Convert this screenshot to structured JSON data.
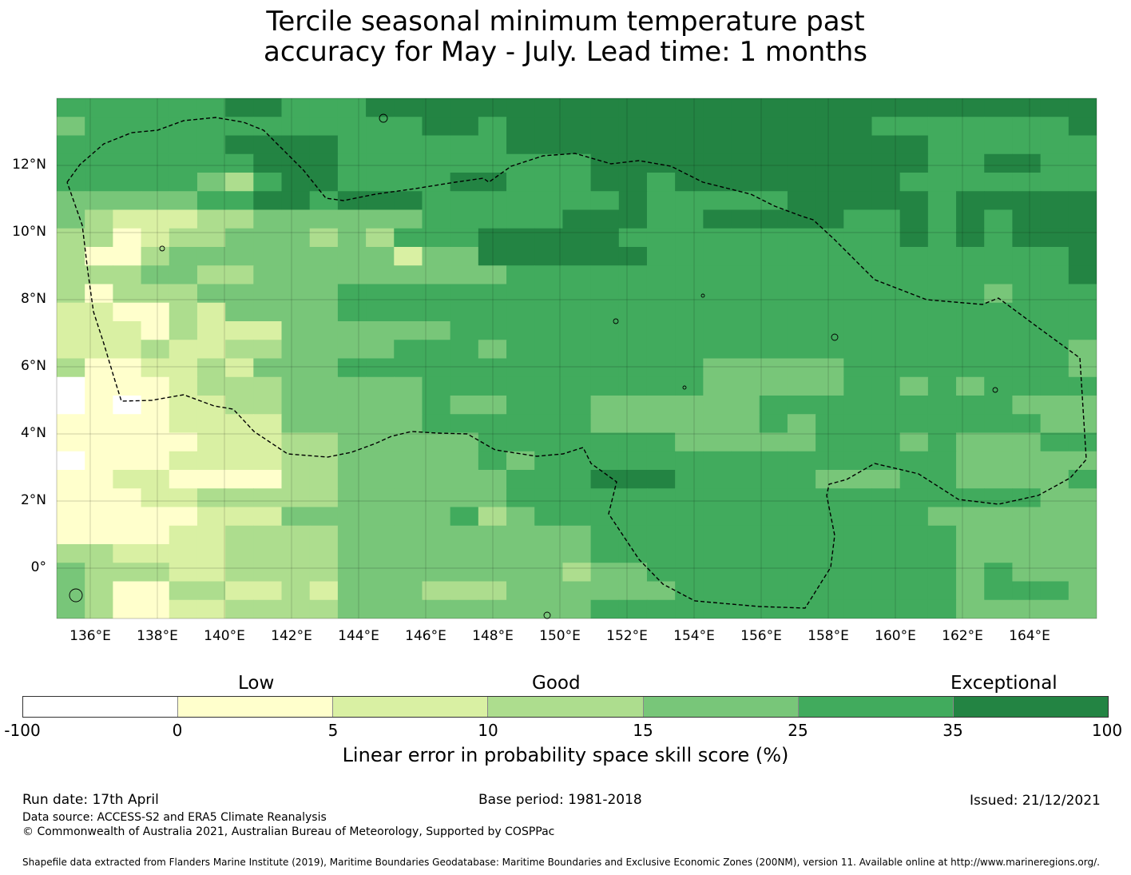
{
  "title": {
    "line1": "Tercile seasonal minimum temperature past",
    "line2": "accuracy for May - July. Lead time: 1 months"
  },
  "map": {
    "lat_labels": [
      "12°N",
      "10°N",
      "8°N",
      "6°N",
      "4°N",
      "2°N",
      "0°"
    ],
    "lon_labels": [
      "136°E",
      "138°E",
      "140°E",
      "142°E",
      "144°E",
      "146°E",
      "148°E",
      "150°E",
      "152°E",
      "154°E",
      "156°E",
      "158°E",
      "160°E",
      "162°E",
      "164°E"
    ],
    "grid_cols": 37,
    "grid_rows": 28,
    "grid_lat_top": 14.0,
    "grid_lon_left": 135.0,
    "cell_deg": 0.5556,
    "rows": [
      "5555556655566666666666666666666666666",
      "4555555555555665666666666666655555556",
      "5555556666555555666666666666666555555",
      "5555555666555555555666666666666556655",
      "5555543566555566555665666666665555555",
      "4444455665666555555565555566666566666",
      "4322233444444555556665566666556565666",
      "3312334443435556666655555555556565666",
      "3113444444442446666665555555555555556",
      "3334433444444444555555555555555555556",
      "3133344444555555555555555555555554555",
      "2211324444555555555555555555555555555",
      "2221322244444455555555555555555555555",
      "2223223344445554555555555555555555554",
      "3112232444555555555555544444555555554",
      "0111233344444555555555544444554545555",
      "0101223344444544555444444555555555444",
      "1111222244444555555444444545555555544",
      "1111122233444445555555444445554544455",
      "0111222233444445455555555555555544444",
      "1122111133444444555666555554445544445",
      "1112233333444444555555555555555555544",
      "1111122244444453455555555555555444444",
      "1111223333444444444555555555555544444",
      "3322223333444444444555555555555544444",
      "4333223333444444443445555555555545444",
      "4311332232444333444444555555555545554",
      "4311223333444444444555555555555544444"
    ],
    "coast_segments": []
  },
  "colorbar": {
    "categories": [
      "Low",
      "Good",
      "Exceptional"
    ],
    "ticks": [
      "-100",
      "0",
      "5",
      "10",
      "15",
      "25",
      "35",
      "100"
    ],
    "colors": [
      "#ffffff",
      "#ffffcc",
      "#d9f0a3",
      "#addd8e",
      "#78c679",
      "#41ab5d",
      "#238443"
    ],
    "label": "Linear error in probability space skill score (%)"
  },
  "footer": {
    "run_date": "Run date: 17th April",
    "base_period": "Base period: 1981-2018",
    "issued": "Issued: 21/12/2021",
    "data_source": "Data source: ACCESS-S2 and ERA5 Climate Reanalysis",
    "copyright": "© Commonwealth of Australia 2021, Australian Bureau of Meteorology, Supported by COSPPac",
    "shapefile": "Shapefile data extracted from Flanders Marine Institute (2019), Maritime Boundaries Geodatabase: Maritime Boundaries and Exclusive Economic Zones (200NM), version 11. Available online at http://www.marineregions.org/."
  }
}
